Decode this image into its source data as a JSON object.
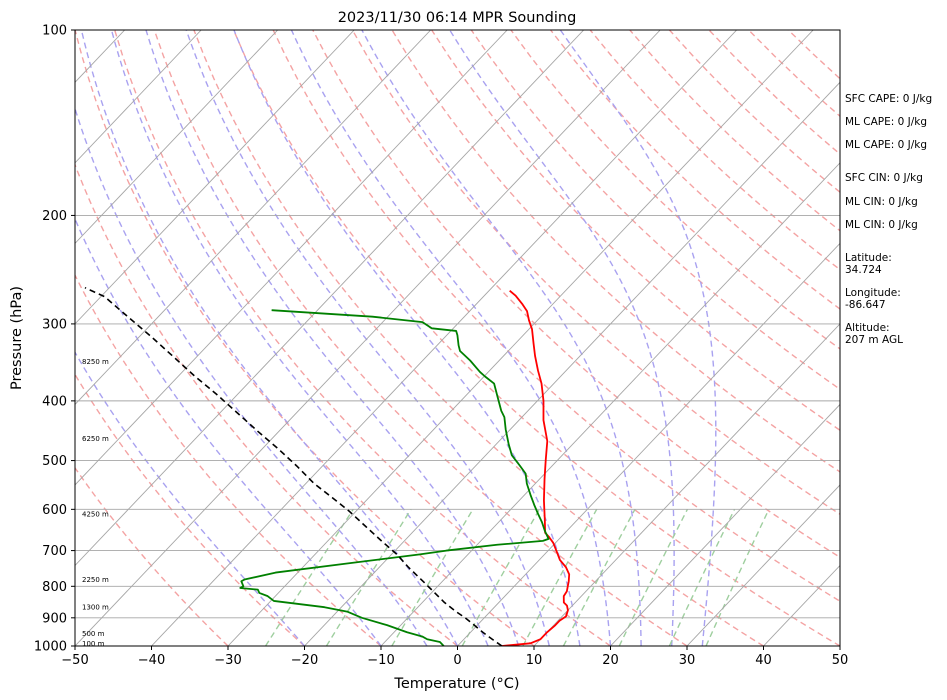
{
  "chart_data": {
    "type": "skew-t",
    "title": "2023/11/30 06:14 MPR Sounding",
    "xlabel": "Temperature (°C)",
    "ylabel": "Pressure (hPa)",
    "xlim": [
      -50,
      50
    ],
    "ylim": [
      1000,
      100
    ],
    "yscale": "log",
    "x_ticks": [
      -50,
      -40,
      -30,
      -20,
      -10,
      0,
      10,
      20,
      30,
      40,
      50
    ],
    "x_tick_labels": [
      "−50",
      "−40",
      "−30",
      "−20",
      "−10",
      "0",
      "10",
      "20",
      "30",
      "40",
      "50"
    ],
    "y_ticks": [
      1000,
      900,
      800,
      700,
      600,
      500,
      400,
      300,
      200,
      100
    ],
    "grid": true,
    "height_labels": [
      {
        "p": 990,
        "label": "100 m"
      },
      {
        "p": 955,
        "label": "500 m"
      },
      {
        "p": 865,
        "label": "1300 m"
      },
      {
        "p": 780,
        "label": "2250 m"
      },
      {
        "p": 610,
        "label": "4250 m"
      },
      {
        "p": 460,
        "label": "6250 m"
      },
      {
        "p": 345,
        "label": "8250 m"
      }
    ],
    "series": [
      {
        "type": "temperature",
        "color": "#ff0000",
        "points": [
          [
            5.8,
            1000
          ],
          [
            9.2,
            990
          ],
          [
            10,
            975
          ],
          [
            10,
            950
          ],
          [
            10.2,
            925
          ],
          [
            10.2,
            910
          ],
          [
            10.5,
            895
          ],
          [
            10,
            875
          ],
          [
            9.3,
            860
          ],
          [
            8.5,
            850
          ],
          [
            7.7,
            830
          ],
          [
            7.5,
            815
          ],
          [
            7,
            800
          ],
          [
            6.5,
            785
          ],
          [
            5.7,
            765
          ],
          [
            4.4,
            745
          ],
          [
            2.7,
            725
          ],
          [
            1.4,
            705
          ],
          [
            -0.3,
            680
          ],
          [
            -1.6,
            665
          ],
          [
            -2.6,
            655
          ],
          [
            -4.2,
            625
          ],
          [
            -6.8,
            580
          ],
          [
            -9.4,
            535
          ],
          [
            -11.5,
            500
          ],
          [
            -13.7,
            465
          ],
          [
            -16.8,
            430
          ],
          [
            -19.2,
            400
          ],
          [
            -21.6,
            375
          ],
          [
            -23.7,
            357
          ],
          [
            -25.9,
            338
          ],
          [
            -27.6,
            323
          ],
          [
            -29.6,
            306
          ],
          [
            -31.1,
            296
          ],
          [
            -32.5,
            286
          ],
          [
            -33.9,
            279
          ],
          [
            -35.9,
            270
          ],
          [
            -37.3,
            265
          ]
        ]
      },
      {
        "type": "dewpoint",
        "color": "#008000",
        "points": [
          [
            -1.8,
            1000
          ],
          [
            -2.8,
            985
          ],
          [
            -4.8,
            975
          ],
          [
            -5.8,
            965
          ],
          [
            -8.3,
            950
          ],
          [
            -11.8,
            925
          ],
          [
            -16,
            900
          ],
          [
            -18.6,
            880
          ],
          [
            -22.2,
            865
          ],
          [
            -29.6,
            845
          ],
          [
            -31,
            830
          ],
          [
            -32.5,
            820
          ],
          [
            -33.1,
            810
          ],
          [
            -35.6,
            805
          ],
          [
            -35.4,
            800
          ],
          [
            -36.3,
            785
          ],
          [
            -36.1,
            780
          ],
          [
            -32.9,
            760
          ],
          [
            -24.8,
            735
          ],
          [
            -16.3,
            710
          ],
          [
            -13.3,
            700
          ],
          [
            -7.4,
            685
          ],
          [
            -1.9,
            675
          ],
          [
            -1.4,
            670
          ],
          [
            -2.9,
            650
          ],
          [
            -4.3,
            630
          ],
          [
            -5.9,
            610
          ],
          [
            -7.5,
            590
          ],
          [
            -9.1,
            570
          ],
          [
            -11.1,
            545
          ],
          [
            -12.5,
            525
          ],
          [
            -14.2,
            510
          ],
          [
            -16.6,
            490
          ],
          [
            -18.4,
            470
          ],
          [
            -20.6,
            445
          ],
          [
            -22.3,
            425
          ],
          [
            -23.5,
            415
          ],
          [
            -25.6,
            395
          ],
          [
            -27.8,
            375
          ],
          [
            -29.9,
            365
          ],
          [
            -31.1,
            359
          ],
          [
            -33.8,
            344
          ],
          [
            -36.3,
            332
          ],
          [
            -37.2,
            325
          ],
          [
            -38.6,
            313
          ],
          [
            -39.3,
            308
          ],
          [
            -42.8,
            305
          ],
          [
            -44.8,
            298
          ],
          [
            -52,
            292
          ],
          [
            -66,
            285
          ]
        ]
      },
      {
        "type": "parcel",
        "color": "#000000",
        "style": "dashed",
        "points": [
          [
            5.8,
            1000
          ],
          [
            3.7,
            975
          ],
          [
            1.6,
            950
          ],
          [
            -0.4,
            925
          ],
          [
            -2.5,
            900
          ],
          [
            -4.4,
            880
          ],
          [
            -7.1,
            850
          ],
          [
            -10.4,
            810
          ],
          [
            -13,
            780
          ],
          [
            -16.2,
            745
          ],
          [
            -19.3,
            710
          ],
          [
            -23,
            675
          ],
          [
            -26.8,
            640
          ],
          [
            -30.8,
            605
          ],
          [
            -34.7,
            575
          ],
          [
            -38.9,
            545
          ],
          [
            -43.4,
            510
          ],
          [
            -48,
            478
          ],
          [
            -52.8,
            448
          ],
          [
            -57.8,
            418
          ],
          [
            -62.8,
            390
          ],
          [
            -68,
            364
          ],
          [
            -73.3,
            338
          ],
          [
            -78.6,
            314
          ],
          [
            -84,
            292
          ],
          [
            -89.5,
            271
          ],
          [
            -93.2,
            262
          ]
        ]
      }
    ],
    "annotations": [
      "SFC CAPE: 0 J/kg",
      "ML CAPE: 0 J/kg",
      "ML CAPE: 0 J/kg",
      "SFC CIN: 0 J/kg",
      "ML CIN: 0 J/kg",
      "ML CIN: 0 J/kg",
      "Latitude:",
      "34.724",
      "Longitude:",
      "-86.647",
      "Altitude:",
      "207 m AGL"
    ]
  },
  "colors": {
    "temperature": "#ff0000",
    "dewpoint": "#008000",
    "parcel": "#000000",
    "dry_adiabat": "#f4a3a3",
    "moist_adiabat": "#a9a2f0",
    "mixing_ratio": "#9fcf9f",
    "isotherm": "#a6a6a6"
  }
}
